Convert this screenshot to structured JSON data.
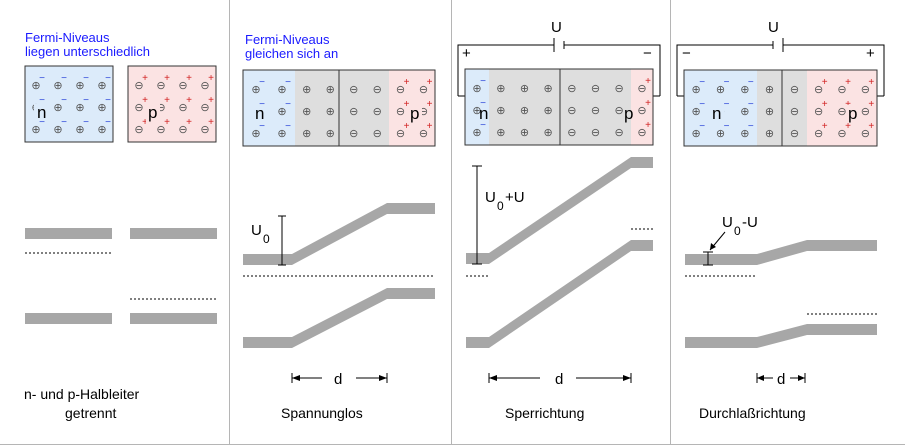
{
  "panels": [
    {
      "id": "separated",
      "caption_lines": [
        "n- und p-Halbleiter",
        "getrennt"
      ],
      "heading_lines": [
        "Fermi-Niveaus",
        "liegen unterschiedlich"
      ],
      "n_label": "n",
      "p_label": "p"
    },
    {
      "id": "no-voltage",
      "caption_lines": [
        "Spannunglos"
      ],
      "heading_lines": [
        "Fermi-Niveaus",
        "gleichen sich an"
      ],
      "n_label": "n",
      "p_label": "p",
      "potential_label": "U",
      "potential_sub": "0",
      "width_label": "d"
    },
    {
      "id": "reverse-bias",
      "caption_lines": [
        "Sperrichtung"
      ],
      "voltage_label": "U",
      "plus": "+",
      "minus": "−",
      "n_label": "n",
      "p_label": "p",
      "potential_label": "U",
      "potential_sub": "0",
      "potential_suffix": "+U",
      "width_label": "d"
    },
    {
      "id": "forward-bias",
      "caption_lines": [
        "Durchlaßrichtung"
      ],
      "voltage_label": "U",
      "plus": "+",
      "minus": "−",
      "n_label": "n",
      "p_label": "p",
      "potential_label": "U",
      "potential_sub": "0",
      "potential_suffix": "-U",
      "width_label": "d"
    }
  ],
  "symbols": {
    "donor": "⊕",
    "acceptor": "⊖",
    "electron": "−",
    "hole": "+"
  },
  "colors": {
    "heading": "#1a1aff",
    "n_region": "#dcebfa",
    "p_region": "#fbe3e3",
    "depletion": "#dedede",
    "band": "#a7a7a7",
    "electron": "#2b44d8",
    "hole": "#d22222",
    "divider": "#b5b5b5"
  }
}
